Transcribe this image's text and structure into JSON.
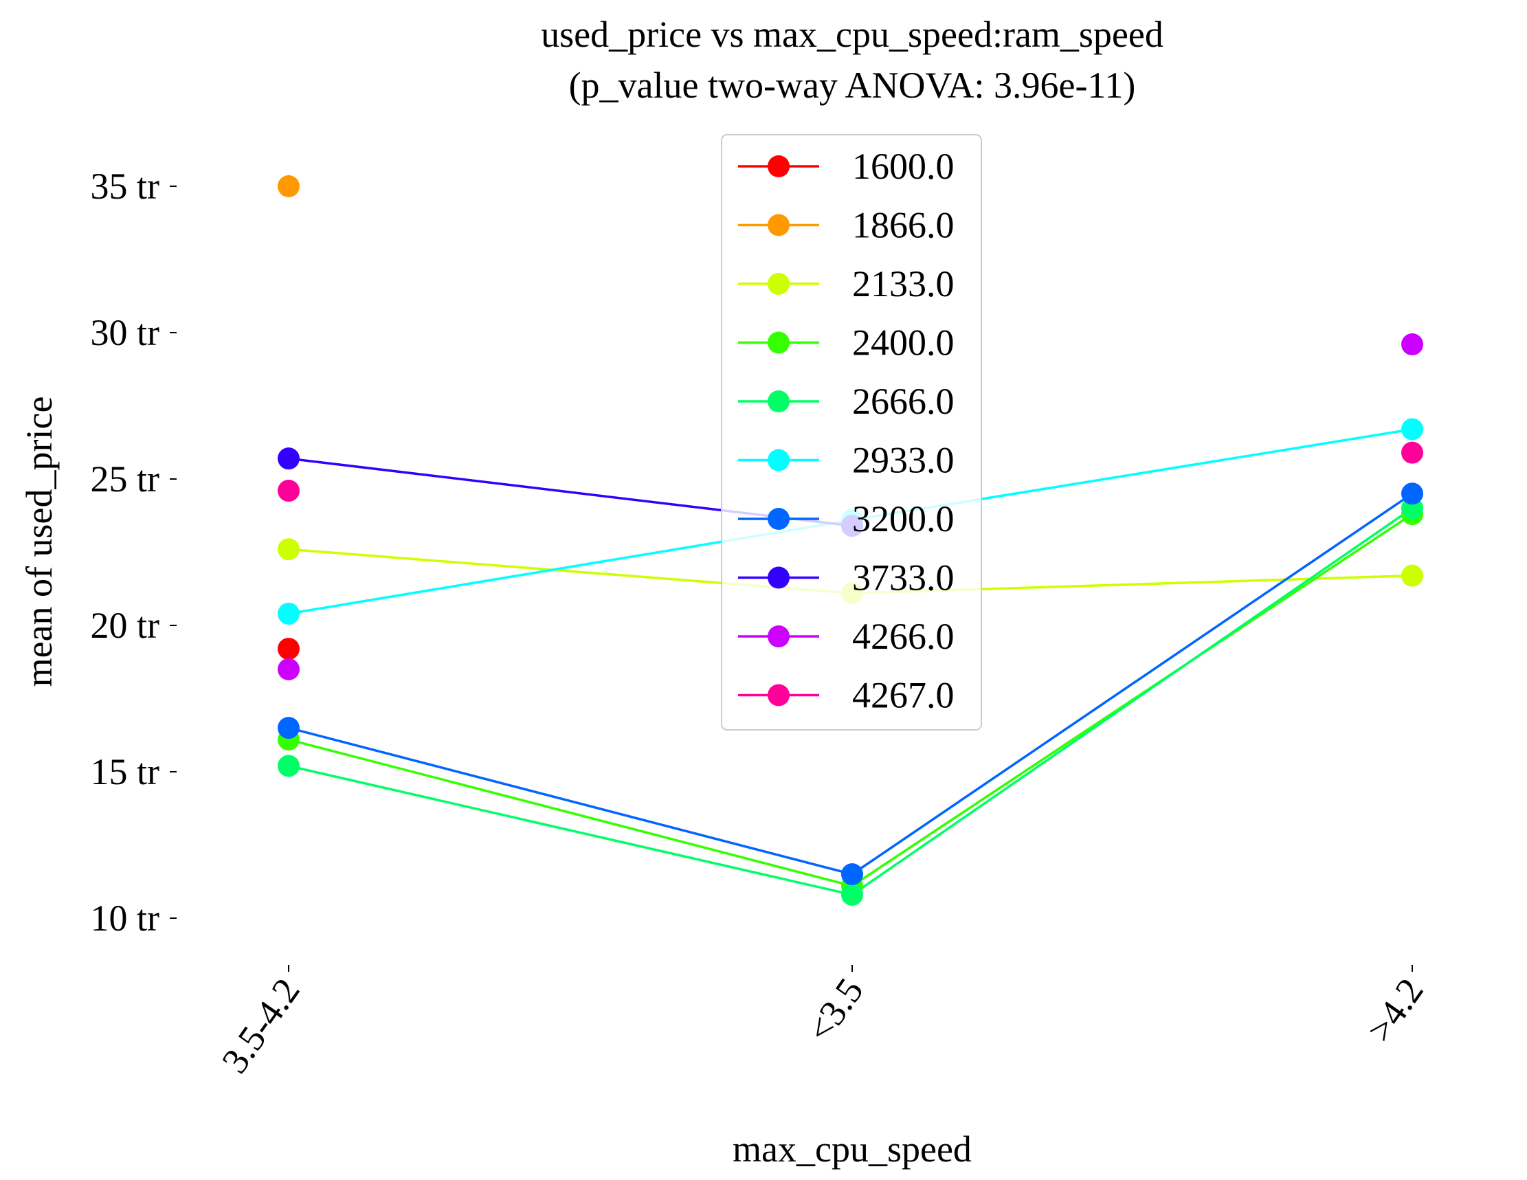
{
  "chart_data": {
    "type": "line",
    "title": "used_price vs max_cpu_speed:ram_speed",
    "subtitle": "(p_value two-way ANOVA: 3.96e-11)",
    "xlabel": "max_cpu_speed",
    "ylabel": "mean of used_price",
    "categories": [
      "3.5-4.2",
      "<3.5",
      ">4.2"
    ],
    "ylim": [
      8.3,
      37.5
    ],
    "yticks": [
      10,
      15,
      20,
      25,
      30,
      35
    ],
    "ytick_labels": [
      "10 tr",
      "15 tr",
      "20 tr",
      "25 tr",
      "30 tr",
      "35 tr"
    ],
    "grid": false,
    "legend_position": "top-center",
    "series": [
      {
        "name": "1600.0",
        "color": "#ff0000",
        "values": [
          19.2,
          null,
          null
        ]
      },
      {
        "name": "1866.0",
        "color": "#ff9900",
        "values": [
          35.0,
          null,
          null
        ]
      },
      {
        "name": "2133.0",
        "color": "#ccff00",
        "values": [
          22.6,
          21.1,
          21.7
        ]
      },
      {
        "name": "2400.0",
        "color": "#33ff00",
        "values": [
          16.1,
          11.1,
          23.8
        ]
      },
      {
        "name": "2666.0",
        "color": "#00ff66",
        "values": [
          15.2,
          10.8,
          24.0
        ]
      },
      {
        "name": "2933.0",
        "color": "#00ffff",
        "values": [
          20.4,
          23.6,
          26.7
        ]
      },
      {
        "name": "3200.0",
        "color": "#0066ff",
        "values": [
          16.5,
          11.5,
          24.5
        ]
      },
      {
        "name": "3733.0",
        "color": "#3300ff",
        "values": [
          25.7,
          23.4,
          null
        ]
      },
      {
        "name": "4266.0",
        "color": "#cc00ff",
        "values": [
          18.5,
          null,
          29.6
        ]
      },
      {
        "name": "4267.0",
        "color": "#ff0099",
        "values": [
          24.6,
          null,
          25.9
        ]
      }
    ]
  }
}
